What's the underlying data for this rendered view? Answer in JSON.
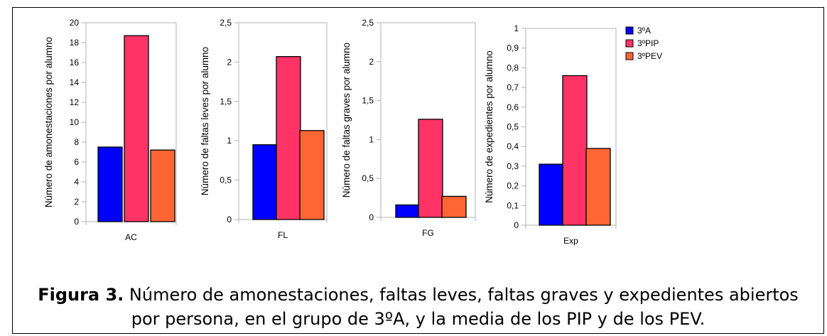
{
  "caption": {
    "label": "Figura 3.",
    "line1": " Número de amonestaciones, faltas leves, faltas graves y expedientes abiertos",
    "line2": "por persona, en el grupo de 3ºA, y la media de los PIP y de los PEV."
  },
  "legend": {
    "items": [
      {
        "name": "3ºA",
        "color": "#0000ff"
      },
      {
        "name": "3ºPIP",
        "color": "#ff3366"
      },
      {
        "name": "3ºPEV",
        "color": "#ff6633"
      }
    ]
  },
  "chart_data": [
    {
      "type": "bar",
      "ylabel": "Número de amonestaciones por alumno",
      "categories": [
        "AC"
      ],
      "ylim": [
        0,
        20
      ],
      "yticks": [
        "0",
        "2",
        "4",
        "6",
        "8",
        "10",
        "12",
        "14",
        "16",
        "18",
        "20"
      ],
      "series": [
        {
          "name": "3ºA",
          "values": [
            7.5
          ]
        },
        {
          "name": "3ºPIP",
          "values": [
            18.7
          ]
        },
        {
          "name": "3ºPEV",
          "values": [
            7.2
          ]
        }
      ],
      "grid": false
    },
    {
      "type": "bar",
      "ylabel": "Número de faltas leves por alumno",
      "categories": [
        "FL"
      ],
      "ylim": [
        0,
        2.5
      ],
      "yticks": [
        "0",
        "0,5",
        "1",
        "1,5",
        "2",
        "2,5"
      ],
      "series": [
        {
          "name": "3ºA",
          "values": [
            0.95
          ]
        },
        {
          "name": "3ºPIP",
          "values": [
            2.07
          ]
        },
        {
          "name": "3ºPEV",
          "values": [
            1.13
          ]
        }
      ],
      "grid": false
    },
    {
      "type": "bar",
      "ylabel": "Número de faltas graves por alumno",
      "categories": [
        "FG"
      ],
      "ylim": [
        0,
        2.5
      ],
      "yticks": [
        "0",
        "0,5",
        "1",
        "1,5",
        "2",
        "2,5"
      ],
      "series": [
        {
          "name": "3ºA",
          "values": [
            0.16
          ]
        },
        {
          "name": "3ºPIP",
          "values": [
            1.26
          ]
        },
        {
          "name": "3ºPEV",
          "values": [
            0.27
          ]
        }
      ],
      "grid": false
    },
    {
      "type": "bar",
      "ylabel": "Número de expedientes por alumno",
      "categories": [
        "Exp"
      ],
      "ylim": [
        0,
        1
      ],
      "yticks": [
        "0",
        "0,1",
        "0,2",
        "0,3",
        "0,4",
        "0,5",
        "0,6",
        "0,7",
        "0,8",
        "0,9",
        "1"
      ],
      "series": [
        {
          "name": "3ºA",
          "values": [
            0.31
          ]
        },
        {
          "name": "3ºPIP",
          "values": [
            0.76
          ]
        },
        {
          "name": "3ºPEV",
          "values": [
            0.39
          ]
        }
      ],
      "grid": false,
      "legend": "top-right"
    }
  ]
}
